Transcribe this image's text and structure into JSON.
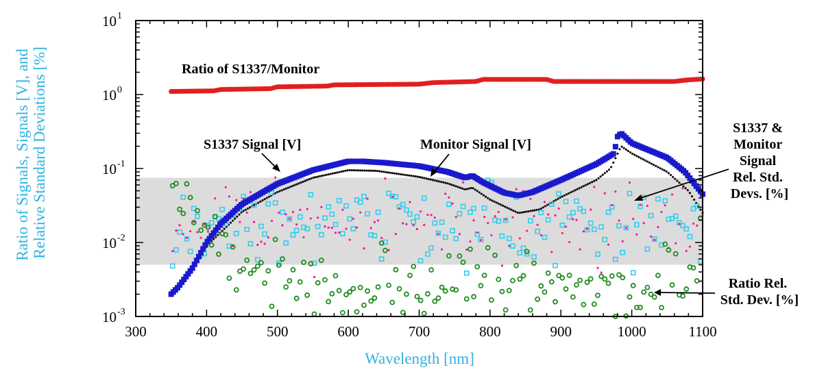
{
  "chart_data": {
    "type": "scatter",
    "xlabel": "Wavelength [nm]",
    "ylabel_lines": [
      "Ratio of Signals, Signals [V], and",
      "Relative Standard Deviations [%]"
    ],
    "xlim": [
      300,
      1100
    ],
    "ylim": [
      0.001,
      10
    ],
    "yscale": "log",
    "x_ticks": [
      300,
      400,
      500,
      600,
      700,
      800,
      900,
      1000,
      1100
    ],
    "y_ticks": [
      {
        "value": 0.001,
        "base": "10",
        "exp": "-3"
      },
      {
        "value": 0.01,
        "base": "10",
        "exp": "-2"
      },
      {
        "value": 0.1,
        "base": "10",
        "exp": "-1"
      },
      {
        "value": 1,
        "base": "10",
        "exp": "0"
      },
      {
        "value": 10,
        "base": "10",
        "exp": "1"
      }
    ],
    "grid": false,
    "legend": "none",
    "shaded_band": {
      "y_range": [
        0.005,
        0.075
      ],
      "color": "#dcdcdc"
    },
    "colors": {
      "ratio": "#e02020",
      "s1337": "#1a1acc",
      "monitor": "#111111",
      "rsd_s1337": "#ff1493",
      "rsd_monitor": "#33ccee",
      "ratio_rsd": "#1e8c1e",
      "axis_title": "#2fb2e0"
    },
    "series": [
      {
        "name": "Ratio of S1337/Monitor",
        "marker": "circle-filled",
        "step": 3,
        "profile": [
          [
            350,
            1.1
          ],
          [
            410,
            1.12
          ],
          [
            420,
            1.17
          ],
          [
            490,
            1.2
          ],
          [
            500,
            1.27
          ],
          [
            570,
            1.3
          ],
          [
            580,
            1.35
          ],
          [
            700,
            1.38
          ],
          [
            720,
            1.45
          ],
          [
            780,
            1.5
          ],
          [
            790,
            1.6
          ],
          [
            880,
            1.6
          ],
          [
            890,
            1.5
          ],
          [
            1060,
            1.5
          ],
          [
            1080,
            1.58
          ],
          [
            1100,
            1.62
          ]
        ]
      },
      {
        "name": "S1337 Signal [V]",
        "marker": "square-filled",
        "step": 3,
        "profile": [
          [
            350,
            0.002
          ],
          [
            360,
            0.0025
          ],
          [
            380,
            0.0045
          ],
          [
            400,
            0.01
          ],
          [
            420,
            0.018
          ],
          [
            450,
            0.033
          ],
          [
            500,
            0.062
          ],
          [
            550,
            0.095
          ],
          [
            600,
            0.125
          ],
          [
            620,
            0.125
          ],
          [
            650,
            0.12
          ],
          [
            700,
            0.108
          ],
          [
            740,
            0.09
          ],
          [
            765,
            0.075
          ],
          [
            775,
            0.08
          ],
          [
            790,
            0.065
          ],
          [
            820,
            0.047
          ],
          [
            840,
            0.043
          ],
          [
            860,
            0.048
          ],
          [
            900,
            0.07
          ],
          [
            950,
            0.115
          ],
          [
            975,
            0.16
          ],
          [
            980,
            0.27
          ],
          [
            985,
            0.3
          ],
          [
            1000,
            0.22
          ],
          [
            1050,
            0.14
          ],
          [
            1075,
            0.09
          ],
          [
            1100,
            0.045
          ]
        ]
      },
      {
        "name": "Monitor Signal [V]",
        "marker": "dot",
        "step": 3,
        "profile": [
          [
            350,
            0.0019
          ],
          [
            400,
            0.009
          ],
          [
            450,
            0.026
          ],
          [
            500,
            0.048
          ],
          [
            550,
            0.075
          ],
          [
            600,
            0.095
          ],
          [
            640,
            0.093
          ],
          [
            700,
            0.077
          ],
          [
            740,
            0.063
          ],
          [
            765,
            0.052
          ],
          [
            775,
            0.055
          ],
          [
            800,
            0.038
          ],
          [
            840,
            0.025
          ],
          [
            870,
            0.028
          ],
          [
            900,
            0.041
          ],
          [
            950,
            0.07
          ],
          [
            970,
            0.1
          ],
          [
            985,
            0.2
          ],
          [
            1000,
            0.16
          ],
          [
            1050,
            0.09
          ],
          [
            1080,
            0.05
          ],
          [
            1100,
            0.025
          ]
        ]
      },
      {
        "name": "S1337 Rel. Std. Dev. [%]",
        "marker": "dot-small",
        "step": 5,
        "center": 0.018,
        "spread": 0.5,
        "seed": 11
      },
      {
        "name": "Monitor Rel. Std. Dev. [%]",
        "marker": "square-open",
        "step": 5,
        "center": 0.017,
        "spread": 0.5,
        "seed": 23
      },
      {
        "name": "Ratio Rel. Std. Dev. [%]",
        "marker": "circle-open",
        "step": 5,
        "center": 0.0025,
        "spread": 0.45,
        "seed": 37,
        "profile": [
          [
            350,
            0.04
          ],
          [
            360,
            0.05
          ],
          [
            380,
            0.03
          ],
          [
            400,
            0.015
          ],
          [
            420,
            0.011
          ],
          [
            440,
            0.007
          ],
          [
            460,
            0.005
          ],
          [
            480,
            0.0035
          ],
          [
            520,
            0.0028
          ],
          [
            600,
            0.0024
          ],
          [
            700,
            0.0026
          ],
          [
            800,
            0.0038
          ],
          [
            900,
            0.0024
          ],
          [
            1000,
            0.002
          ],
          [
            1050,
            0.0028
          ],
          [
            1080,
            0.005
          ],
          [
            1100,
            0.0065
          ]
        ]
      }
    ],
    "annotations": [
      {
        "lines": [
          "Ratio of S1337/Monitor"
        ]
      },
      {
        "lines": [
          "S1337 Signal [V]"
        ]
      },
      {
        "lines": [
          "Monitor Signal [V]"
        ]
      },
      {
        "lines": [
          "S1337 &",
          "Monitor",
          "Signal",
          "Rel. Std.",
          "Devs. [%]"
        ]
      },
      {
        "lines": [
          "Ratio Rel.",
          "Std. Dev. [%]"
        ]
      }
    ]
  }
}
